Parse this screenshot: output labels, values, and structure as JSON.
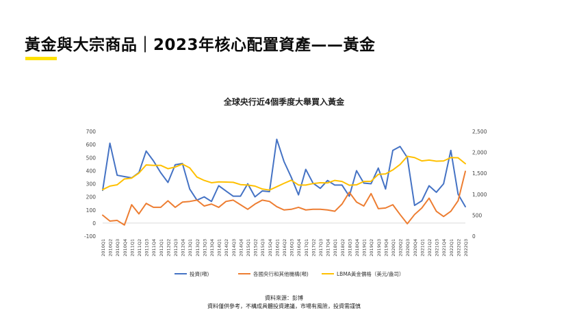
{
  "page": {
    "title": "黃金與大宗商品｜2023年核心配置資產——黃金",
    "accent_color": "#FFE100",
    "source_line": "資料來源：彭博",
    "disclaimer_line": "資料僅供參考，不構成具體投資建議，市場有風險，投資需謹慎"
  },
  "chart_data": {
    "type": "line",
    "title": "全球央行近4個季度大舉買入黃金",
    "categories": [
      "2010Q1",
      "2010Q2",
      "2010Q3",
      "2010Q4",
      "2011Q1",
      "2011Q2",
      "2011Q3",
      "2011Q4",
      "2012Q1",
      "2012Q2",
      "2012Q3",
      "2012Q4",
      "2013Q1",
      "2013Q2",
      "2013Q3",
      "2013Q4",
      "2014Q1",
      "2014Q2",
      "2014Q3",
      "2014Q4",
      "2015Q1",
      "2015Q2",
      "2015Q3",
      "2015Q4",
      "2016Q1",
      "2016Q2",
      "2016Q3",
      "2016Q4",
      "2017Q1",
      "2017Q2",
      "2017Q3",
      "2017Q4",
      "2018Q1",
      "2018Q2",
      "2018Q3",
      "2018Q4",
      "2019Q1",
      "2019Q2",
      "2019Q3",
      "2019Q4",
      "2020Q1",
      "2020Q2",
      "2020Q3",
      "2020Q4",
      "2021Q1",
      "2021Q2",
      "2021Q3",
      "2021Q4",
      "2022Q1",
      "2022Q2",
      "2022Q3"
    ],
    "left_axis": {
      "min": -100,
      "max": 700,
      "ticks": [
        -100,
        0,
        100,
        200,
        300,
        400,
        500,
        600,
        700
      ]
    },
    "right_axis": {
      "min": 0,
      "max": 2500,
      "ticks": [
        0,
        500,
        1000,
        1500,
        2000,
        2500
      ],
      "tick_labels": [
        "0",
        "500",
        "1,000",
        "1,500",
        "2,000",
        "2,500"
      ]
    },
    "series": [
      {
        "name": "投資(噸)",
        "axis": "left",
        "color": "#4472C4",
        "values": [
          250,
          610,
          365,
          355,
          345,
          385,
          550,
          475,
          385,
          310,
          445,
          455,
          260,
          175,
          200,
          165,
          285,
          245,
          205,
          205,
          300,
          200,
          245,
          240,
          640,
          470,
          350,
          215,
          410,
          305,
          265,
          325,
          290,
          290,
          205,
          400,
          305,
          300,
          420,
          260,
          555,
          585,
          500,
          135,
          170,
          285,
          235,
          300,
          555,
          220,
          125
        ]
      },
      {
        "name": "各國央行和其他機構(噸)",
        "axis": "left",
        "color": "#ED7D31",
        "values": [
          60,
          15,
          20,
          -15,
          140,
          70,
          150,
          120,
          120,
          170,
          120,
          160,
          165,
          175,
          130,
          145,
          120,
          165,
          175,
          140,
          105,
          145,
          175,
          165,
          125,
          100,
          105,
          120,
          100,
          105,
          105,
          100,
          90,
          145,
          235,
          160,
          130,
          225,
          110,
          115,
          140,
          65,
          -5,
          65,
          115,
          190,
          90,
          50,
          90,
          170,
          395
        ]
      },
      {
        "name": "LBMA黃金價格（美元/盎司）",
        "axis": "right",
        "color": "#FFC000",
        "values": [
          1110,
          1195,
          1225,
          1365,
          1385,
          1505,
          1700,
          1690,
          1690,
          1610,
          1650,
          1720,
          1630,
          1410,
          1330,
          1275,
          1295,
          1290,
          1285,
          1230,
          1220,
          1195,
          1125,
          1100,
          1180,
          1260,
          1335,
          1220,
          1220,
          1255,
          1275,
          1270,
          1330,
          1305,
          1215,
          1225,
          1305,
          1310,
          1475,
          1485,
          1580,
          1710,
          1905,
          1875,
          1795,
          1815,
          1790,
          1795,
          1875,
          1870,
          1730
        ]
      }
    ],
    "legend_position": "bottom"
  }
}
